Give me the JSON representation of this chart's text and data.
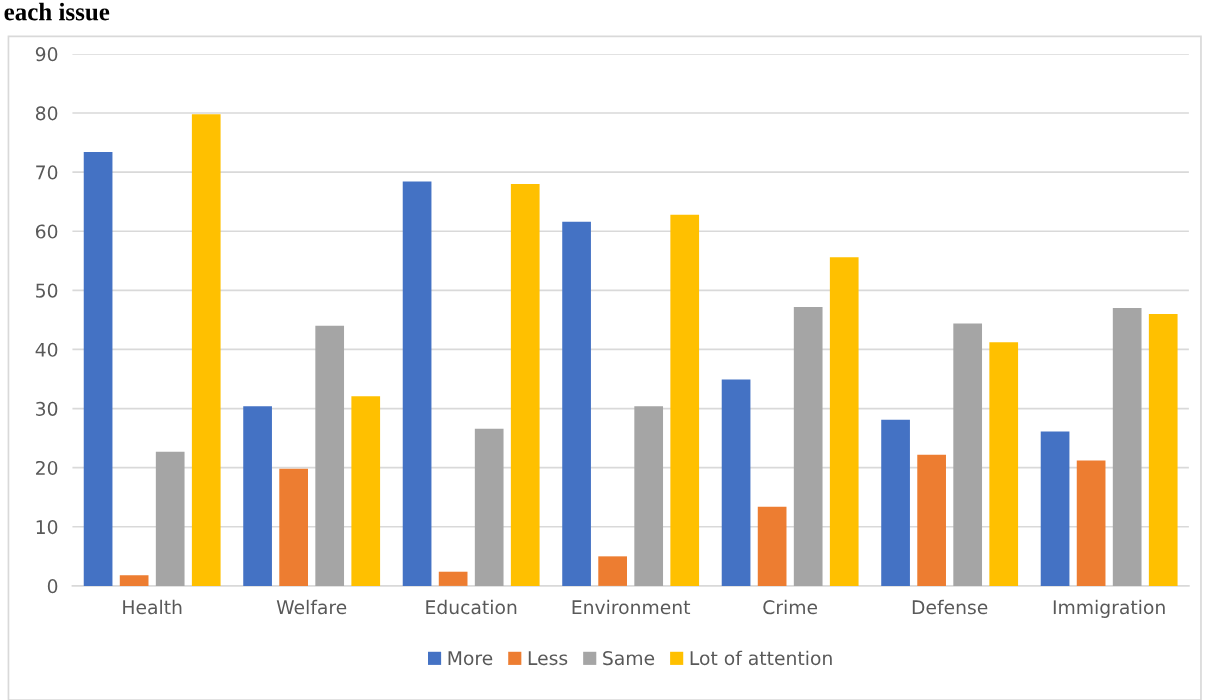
{
  "chart_data": {
    "type": "bar",
    "title": "each issue",
    "categories": [
      "Health",
      "Welfare",
      "Education",
      "Environment",
      "Crime",
      "Defense",
      "Immigration"
    ],
    "series": [
      {
        "name": "More",
        "color": "#4472c4",
        "values": [
          73.4,
          30.4,
          68.4,
          61.6,
          34.9,
          28.1,
          26.1
        ]
      },
      {
        "name": "Less",
        "color": "#ed7d31",
        "values": [
          1.8,
          19.8,
          2.4,
          5.0,
          13.4,
          22.2,
          21.2
        ]
      },
      {
        "name": "Same",
        "color": "#a5a5a5",
        "values": [
          22.7,
          44.0,
          26.6,
          30.4,
          47.2,
          44.4,
          47.0
        ]
      },
      {
        "name": "Lot of attention",
        "color": "#ffc000",
        "values": [
          79.8,
          32.1,
          68.0,
          62.8,
          55.6,
          41.2,
          46.0
        ]
      }
    ],
    "ylim": [
      0,
      90
    ],
    "yticks": [
      0,
      10,
      20,
      30,
      40,
      50,
      60,
      70,
      80,
      90
    ],
    "grid": "y",
    "legend": "bottom"
  }
}
